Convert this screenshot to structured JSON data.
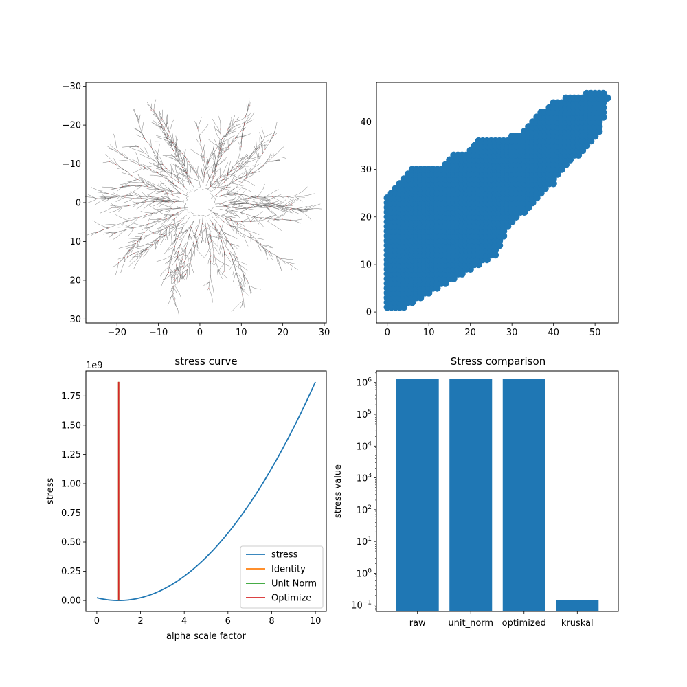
{
  "chart_data": [
    {
      "id": "tree-layout",
      "type": "network",
      "title": "",
      "xlabel": "",
      "ylabel": "",
      "xlim": [
        -27.5,
        30.5
      ],
      "ylim": [
        31,
        -31
      ],
      "y_inverted": true,
      "x_ticks": [
        "−20",
        "−10",
        "0",
        "10",
        "20",
        "30"
      ],
      "y_ticks": [
        "−30",
        "−20",
        "−10",
        "0",
        "10",
        "20",
        "30"
      ],
      "approx_extent": {
        "x": [
          -24,
          26
        ],
        "y": [
          -25,
          26
        ]
      },
      "edge_color": "#555555",
      "node_color": "#c05050"
    },
    {
      "id": "distance-scatter",
      "type": "scatter",
      "title": "",
      "xlabel": "",
      "ylabel": "",
      "xlim": [
        -2.6,
        55.6
      ],
      "ylim": [
        -2.3,
        48.3
      ],
      "x_ticks": [
        "0",
        "10",
        "20",
        "30",
        "40",
        "50"
      ],
      "y_ticks": [
        "0",
        "10",
        "20",
        "30",
        "40"
      ],
      "color": "#1f77b4",
      "upper_envelope": [
        [
          0,
          24
        ],
        [
          1,
          25
        ],
        [
          2,
          26
        ],
        [
          3,
          27
        ],
        [
          4,
          28
        ],
        [
          6,
          30
        ],
        [
          12,
          30
        ],
        [
          14,
          31
        ],
        [
          16,
          33
        ],
        [
          20,
          34
        ],
        [
          22,
          36
        ],
        [
          28,
          36
        ],
        [
          30,
          37
        ],
        [
          33,
          38
        ],
        [
          35,
          40
        ],
        [
          37,
          42
        ],
        [
          40,
          44
        ],
        [
          43,
          45
        ],
        [
          46,
          45
        ],
        [
          48,
          46
        ],
        [
          52,
          46
        ],
        [
          53,
          45
        ]
      ],
      "lower_envelope": [
        [
          0,
          1
        ],
        [
          4,
          1
        ],
        [
          6,
          2
        ],
        [
          8,
          3
        ],
        [
          10,
          4
        ],
        [
          12,
          5
        ],
        [
          14,
          6
        ],
        [
          16,
          7
        ],
        [
          18,
          8
        ],
        [
          20,
          9
        ],
        [
          22,
          10
        ],
        [
          24,
          11
        ],
        [
          26,
          12
        ],
        [
          27,
          14
        ],
        [
          28,
          16
        ],
        [
          29,
          18
        ],
        [
          30,
          19
        ],
        [
          31,
          20
        ],
        [
          33,
          21
        ],
        [
          34,
          22
        ],
        [
          35,
          23
        ],
        [
          36,
          24
        ],
        [
          37,
          25
        ],
        [
          38,
          26
        ],
        [
          40,
          27
        ],
        [
          41,
          29
        ],
        [
          42,
          30
        ],
        [
          43,
          31
        ],
        [
          44,
          32
        ],
        [
          46,
          33
        ],
        [
          47,
          34
        ],
        [
          48,
          35
        ],
        [
          49,
          36
        ],
        [
          50,
          37
        ],
        [
          51,
          38
        ],
        [
          52,
          41
        ],
        [
          53,
          45
        ]
      ]
    },
    {
      "id": "stress-curve",
      "type": "line",
      "title": "stress curve",
      "xlabel": "alpha scale factor",
      "ylabel": "stress",
      "offset_text": "1e9",
      "xlim": [
        -0.5,
        10.5
      ],
      "ylim": [
        -0.0935,
        1.9635
      ],
      "x_ticks": [
        "0",
        "2",
        "4",
        "6",
        "8",
        "10"
      ],
      "y_ticks": [
        "0.00",
        "0.25",
        "0.50",
        "0.75",
        "1.00",
        "1.25",
        "1.50",
        "1.75"
      ],
      "y_scale_units": 1000000000,
      "series": [
        {
          "name": "stress",
          "color": "#1f77b4",
          "kind": "parabola",
          "x_range": [
            0,
            10
          ],
          "vertex_x": 1.0,
          "y_at_0": 0.0228,
          "y_at_10": 1.87
        },
        {
          "name": "Identity",
          "color": "#ff7f0e",
          "kind": "vline",
          "x": 1.0,
          "y_range": [
            0,
            1.87
          ]
        },
        {
          "name": "Unit Norm",
          "color": "#2ca02c",
          "kind": "vline",
          "x": 1.0,
          "y_range": [
            0,
            1.87
          ]
        },
        {
          "name": "Optimize",
          "color": "#d62728",
          "kind": "vline",
          "x": 1.0,
          "y_range": [
            0,
            1.87
          ]
        }
      ],
      "legend_position": "lower-right"
    },
    {
      "id": "stress-comparison",
      "type": "bar",
      "title": "Stress comparison",
      "xlabel": "",
      "ylabel": "stress value",
      "yscale": "log",
      "ylim": [
        0.063,
        2300000
      ],
      "categories": [
        "raw",
        "unit_norm",
        "optimized",
        "kruskal"
      ],
      "values": [
        1300000,
        1300000,
        1300000,
        0.145
      ],
      "color": "#1f77b4",
      "y_ticks": [
        {
          "value": 0.1,
          "base": "10",
          "exp": "−1"
        },
        {
          "value": 1,
          "base": "10",
          "exp": "0"
        },
        {
          "value": 10,
          "base": "10",
          "exp": "1"
        },
        {
          "value": 100,
          "base": "10",
          "exp": "2"
        },
        {
          "value": 1000,
          "base": "10",
          "exp": "3"
        },
        {
          "value": 10000,
          "base": "10",
          "exp": "4"
        },
        {
          "value": 100000,
          "base": "10",
          "exp": "5"
        },
        {
          "value": 1000000,
          "base": "10",
          "exp": "6"
        }
      ]
    }
  ]
}
